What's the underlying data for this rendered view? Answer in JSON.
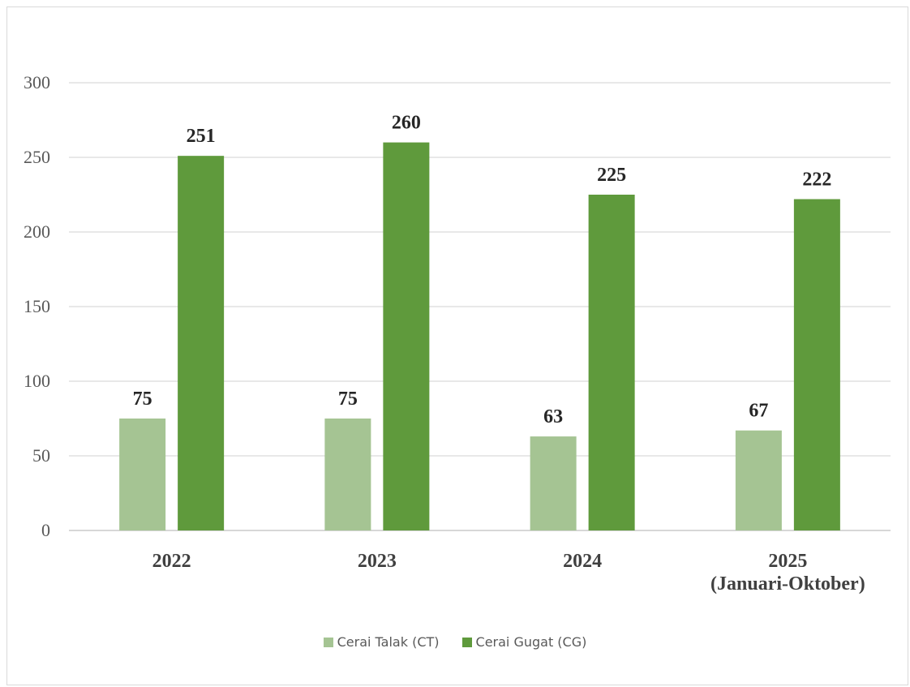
{
  "chart_data": {
    "type": "bar",
    "categories": [
      "2022",
      "2023",
      "2024",
      "2025\n(Januari-Oktober)"
    ],
    "series": [
      {
        "name": "Cerai Talak (CT)",
        "values": [
          75,
          75,
          63,
          67
        ],
        "color": "#a5c493"
      },
      {
        "name": "Cerai Gugat (CG)",
        "values": [
          251,
          260,
          225,
          222
        ],
        "color": "#5f9a3c"
      }
    ],
    "yticks": [
      0,
      50,
      100,
      150,
      200,
      250,
      300
    ],
    "ylim": [
      0,
      300
    ],
    "grid": true,
    "legend_position": "bottom",
    "title": "",
    "xlabel": "",
    "ylabel": ""
  }
}
